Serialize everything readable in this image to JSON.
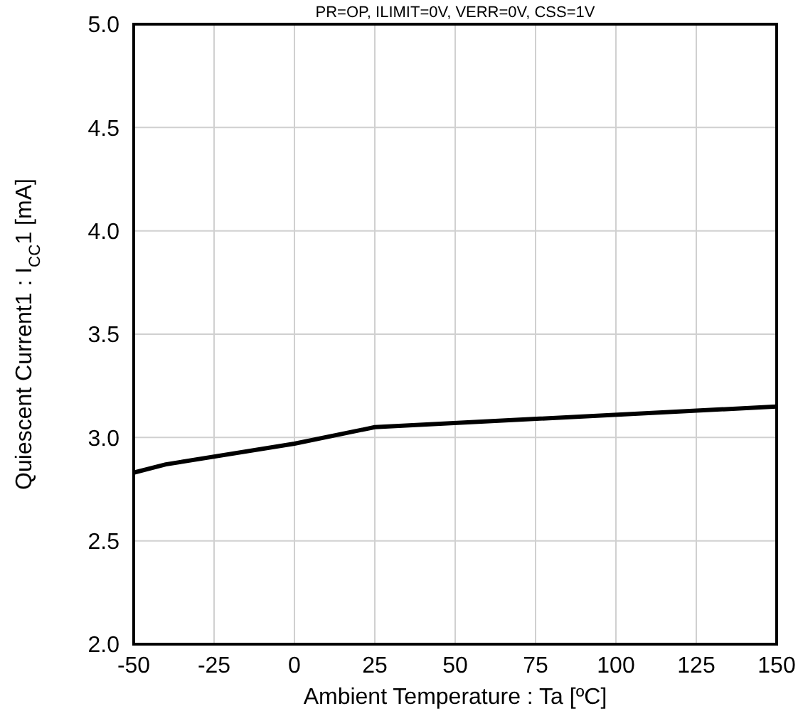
{
  "chart_data": {
    "type": "line",
    "title": "PR=OP, ILIMIT=0V, VERR=0V, CSS=1V",
    "xlabel": "Ambient Temperature : Ta [ºC]",
    "ylabel": "Quiescent Current1 : I$_{CC}$1 [mA]",
    "x": [
      -50,
      -40,
      0,
      25,
      150
    ],
    "series": [
      {
        "color": "#000000",
        "values": [
          2.83,
          2.87,
          2.97,
          3.05,
          3.15
        ]
      }
    ],
    "xlim": [
      -50,
      150
    ],
    "xticks": [
      -50,
      -25,
      0,
      25,
      50,
      75,
      100,
      125,
      150
    ],
    "ylim": [
      2.0,
      5.0
    ],
    "yticks": [
      {
        "value": 2,
        "label": "2.0"
      },
      {
        "value": 2.5,
        "label": "2.5"
      },
      {
        "value": 3,
        "label": "3.0"
      },
      {
        "value": 3.5,
        "label": "3.5"
      },
      {
        "value": 4,
        "label": "4.0"
      },
      {
        "value": 4.5,
        "label": "4.5"
      },
      {
        "value": 5,
        "label": "5.0"
      }
    ],
    "grid": true,
    "marker": "none",
    "line_style": "solid"
  }
}
